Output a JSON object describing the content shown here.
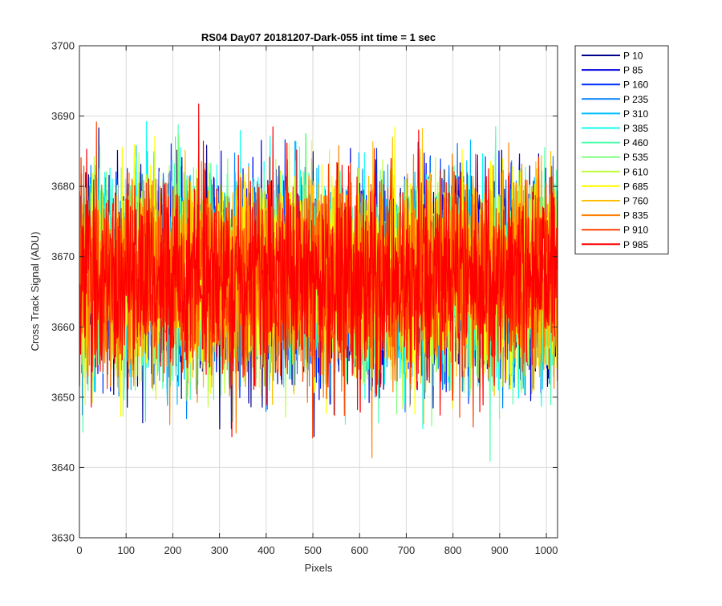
{
  "chart_data": {
    "type": "line",
    "title": "RS04 Day07 20181207-Dark-055 int time = 1 sec",
    "xlabel": "Pixels",
    "ylabel": "Cross Track Signal (ADU)",
    "xlim": [
      0,
      1024
    ],
    "ylim": [
      3630,
      3700
    ],
    "xticks": [
      0,
      100,
      200,
      300,
      400,
      500,
      600,
      700,
      800,
      900,
      1000
    ],
    "yticks": [
      3630,
      3640,
      3650,
      3660,
      3670,
      3680,
      3690,
      3700
    ],
    "xtick_labels": [
      "0",
      "100",
      "200",
      "300",
      "400",
      "500",
      "600",
      "700",
      "800",
      "900",
      "1000"
    ],
    "ytick_labels": [
      "3630",
      "3640",
      "3650",
      "3660",
      "3670",
      "3680",
      "3690",
      "3700"
    ],
    "grid": true,
    "legend_position": "outside-top-right",
    "x_count": 1024,
    "mean_signal": 3667,
    "noise_band": [
      3654,
      3682
    ],
    "outlier_range": [
      3637,
      3695
    ],
    "series": [
      {
        "name": "P 10",
        "color": "#00008F"
      },
      {
        "name": "P 85",
        "color": "#0000DF"
      },
      {
        "name": "P 160",
        "color": "#0030FF"
      },
      {
        "name": "P 235",
        "color": "#0080FF"
      },
      {
        "name": "P 310",
        "color": "#00BFFF"
      },
      {
        "name": "P 385",
        "color": "#10FFEF"
      },
      {
        "name": "P 460",
        "color": "#50FFAF"
      },
      {
        "name": "P 535",
        "color": "#80FF80"
      },
      {
        "name": "P 610",
        "color": "#BFFF40"
      },
      {
        "name": "P 685",
        "color": "#FFFF00"
      },
      {
        "name": "P 760",
        "color": "#FFBF00"
      },
      {
        "name": "P 835",
        "color": "#FF8000"
      },
      {
        "name": "P 910",
        "color": "#FF4000"
      },
      {
        "name": "P 985",
        "color": "#FF0000"
      }
    ]
  }
}
